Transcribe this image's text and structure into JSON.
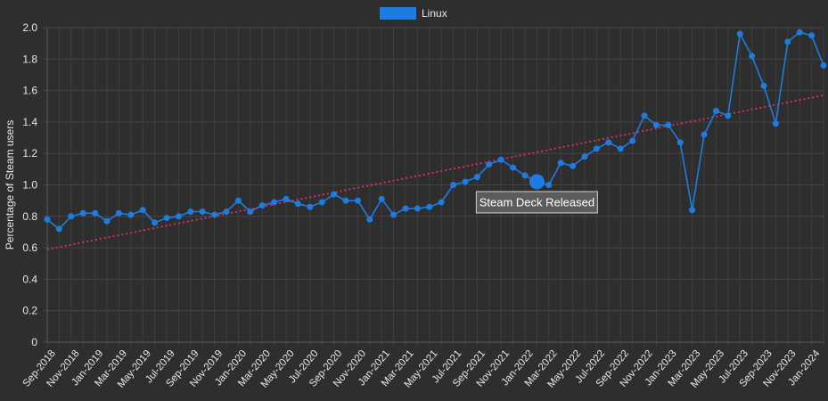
{
  "chart_data": {
    "type": "line",
    "title": "",
    "xlabel": "",
    "ylabel": "Percentage of Steam users",
    "ylim": [
      0,
      2.0
    ],
    "yticks": [
      "0",
      "0.2",
      "0.4",
      "0.6",
      "0.8",
      "1.0",
      "1.2",
      "1.4",
      "1.6",
      "1.8",
      "2.0"
    ],
    "grid": true,
    "legend_position": "top-center",
    "x_tick_labels": [
      "Sep-2018",
      "Nov-2018",
      "Jan-2019",
      "Mar-2019",
      "May-2019",
      "Jul-2019",
      "Sep-2019",
      "Nov-2019",
      "Jan-2020",
      "Mar-2020",
      "May-2020",
      "Jul-2020",
      "Sep-2020",
      "Nov-2020",
      "Jan-2021",
      "Mar-2021",
      "May-2021",
      "Jul-2021",
      "Sep-2021",
      "Nov-2021",
      "Jan-2022",
      "Mar-2022",
      "May-2022",
      "Jul-2022",
      "Sep-2022",
      "Nov-2022",
      "Jan-2023",
      "Mar-2023",
      "May-2023",
      "Jul-2023",
      "Sep-2023",
      "Nov-2023",
      "Jan-2024"
    ],
    "x": [
      "Sep-2018",
      "Oct-2018",
      "Nov-2018",
      "Dec-2018",
      "Jan-2019",
      "Feb-2019",
      "Mar-2019",
      "Apr-2019",
      "May-2019",
      "Jun-2019",
      "Jul-2019",
      "Aug-2019",
      "Sep-2019",
      "Oct-2019",
      "Nov-2019",
      "Dec-2019",
      "Jan-2020",
      "Feb-2020",
      "Mar-2020",
      "Apr-2020",
      "May-2020",
      "Jun-2020",
      "Jul-2020",
      "Aug-2020",
      "Sep-2020",
      "Oct-2020",
      "Nov-2020",
      "Dec-2020",
      "Jan-2021",
      "Feb-2021",
      "Mar-2021",
      "Apr-2021",
      "May-2021",
      "Jun-2021",
      "Jul-2021",
      "Aug-2021",
      "Sep-2021",
      "Oct-2021",
      "Nov-2021",
      "Dec-2021",
      "Jan-2022",
      "Feb-2022",
      "Mar-2022",
      "Apr-2022",
      "May-2022",
      "Jun-2022",
      "Jul-2022",
      "Aug-2022",
      "Sep-2022",
      "Oct-2022",
      "Nov-2022",
      "Dec-2022",
      "Jan-2023",
      "Feb-2023",
      "Mar-2023",
      "Apr-2023",
      "May-2023",
      "Jun-2023",
      "Jul-2023",
      "Aug-2023",
      "Sep-2023",
      "Oct-2023",
      "Nov-2023",
      "Dec-2023",
      "Jan-2024",
      "Feb-2024"
    ],
    "series": [
      {
        "name": "Linux",
        "color": "#1e7ce0",
        "values": [
          0.78,
          0.72,
          0.8,
          0.82,
          0.82,
          0.77,
          0.82,
          0.81,
          0.84,
          0.76,
          0.79,
          0.8,
          0.83,
          0.83,
          0.81,
          0.83,
          0.9,
          0.83,
          0.87,
          0.89,
          0.91,
          0.88,
          0.86,
          0.89,
          0.94,
          0.9,
          0.9,
          0.78,
          0.91,
          0.81,
          0.85,
          0.85,
          0.86,
          0.89,
          1.0,
          1.02,
          1.05,
          1.13,
          1.16,
          1.11,
          1.06,
          1.02,
          1.0,
          1.14,
          1.12,
          1.18,
          1.23,
          1.27,
          1.23,
          1.28,
          1.44,
          1.38,
          1.38,
          1.27,
          0.84,
          1.32,
          1.47,
          1.44,
          1.96,
          1.82,
          1.63,
          1.39,
          1.91,
          1.97,
          1.95,
          1.76
        ]
      }
    ],
    "trendline": {
      "color": "#e0306a",
      "start": 0.59,
      "end": 1.57
    },
    "annotation": {
      "x": "Feb-2022",
      "y": 1.02,
      "text": "Steam Deck Released"
    }
  }
}
